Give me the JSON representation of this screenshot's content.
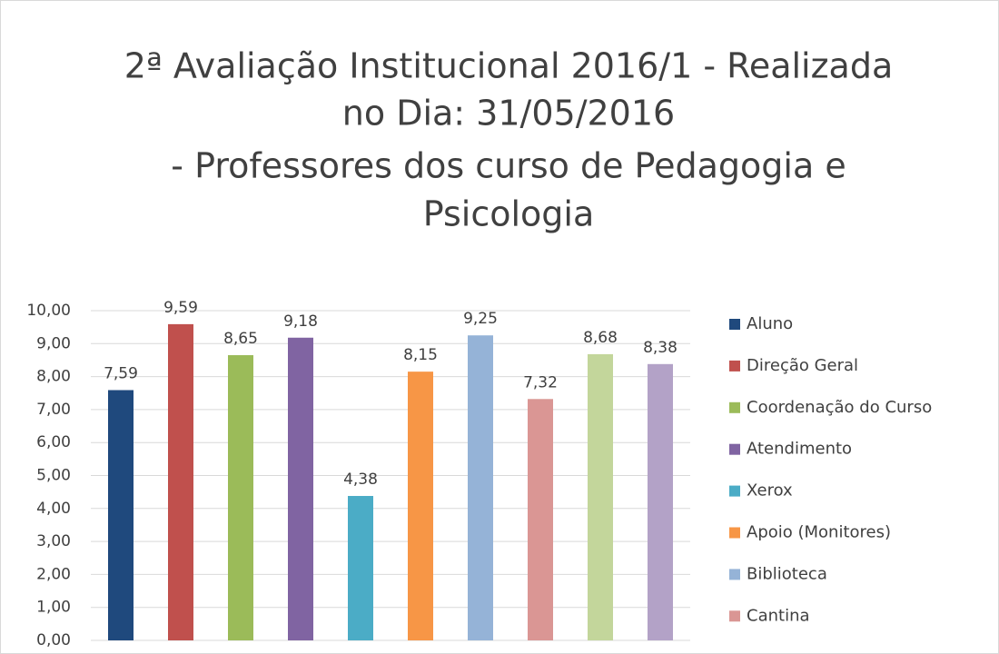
{
  "chart_data": {
    "type": "bar",
    "title": [
      "2ª Avaliação Institucional 2016/1 - Realizada",
      "no Dia: 31/05/2016",
      "- Professores dos curso de Pedagogia e",
      "Psicologia"
    ],
    "categories": [
      "Aluno",
      "Direção Geral",
      "Coordenação do Curso",
      "Atendimento",
      "Xerox",
      "Apoio (Monitores)",
      "Biblioteca",
      "Cantina",
      null,
      null
    ],
    "values": [
      7.59,
      9.59,
      8.65,
      9.18,
      4.38,
      8.15,
      9.25,
      7.32,
      8.68,
      8.38
    ],
    "value_labels": [
      "7,59",
      "9,59",
      "8,65",
      "9,18",
      "4,38",
      "8,15",
      "9,25",
      "7,32",
      "8,68",
      "8,38"
    ],
    "colors": [
      "#1f497d",
      "#c0504d",
      "#9bbb59",
      "#8064a2",
      "#4bacc6",
      "#f79646",
      "#95b3d7",
      "#da9694",
      "#c3d69b",
      "#b3a2c7"
    ],
    "ylim": [
      0,
      10
    ],
    "yticks": [
      {
        "value": 0,
        "label": "0,00"
      },
      {
        "value": 1,
        "label": "1,00"
      },
      {
        "value": 2,
        "label": "2,00"
      },
      {
        "value": 3,
        "label": "3,00"
      },
      {
        "value": 4,
        "label": "4,00"
      },
      {
        "value": 5,
        "label": "5,00"
      },
      {
        "value": 6,
        "label": "6,00"
      },
      {
        "value": 7,
        "label": "7,00"
      },
      {
        "value": 8,
        "label": "8,00"
      },
      {
        "value": 9,
        "label": "9,00"
      },
      {
        "value": 10,
        "label": "10,00"
      }
    ],
    "grid": true,
    "legend": "right"
  }
}
